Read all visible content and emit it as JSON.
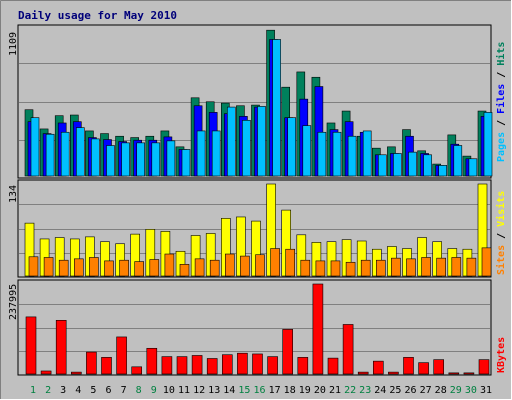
{
  "title": "Daily usage for May 2010",
  "colors": {
    "hits": "#00805c",
    "files": "#0000ff",
    "pages": "#00c0ff",
    "visits": "#ffff00",
    "sites": "#ff8000",
    "kbytes": "#ff0000",
    "weekday_label": "#008040",
    "panel_bg": "#c0c0c0",
    "grid": "#808080",
    "sep": "#ffffff"
  },
  "chart_data": [
    {
      "type": "bar",
      "panel": "hits-files-pages",
      "max_label": "1109",
      "ylim": [
        0,
        1109
      ],
      "legend": {
        "pages": "Pages",
        "files": "Files",
        "hits": "Hits",
        "sep1": " / ",
        "sep2": " / "
      },
      "categories": [
        "1",
        "2",
        "3",
        "4",
        "5",
        "6",
        "7",
        "8",
        "9",
        "10",
        "11",
        "12",
        "13",
        "14",
        "15",
        "16",
        "17",
        "18",
        "19",
        "20",
        "21",
        "22",
        "23",
        "24",
        "25",
        "26",
        "27",
        "28",
        "29",
        "30",
        "31"
      ],
      "series": [
        {
          "name": "Hits",
          "values": [
            500,
            355,
            455,
            460,
            340,
            320,
            300,
            290,
            300,
            340,
            220,
            590,
            560,
            550,
            530,
            535,
            1100,
            670,
            785,
            745,
            400,
            490,
            300,
            210,
            220,
            350,
            190,
            90,
            310,
            150,
            490
          ]
        },
        {
          "name": "Files",
          "values": [
            410,
            320,
            400,
            410,
            290,
            275,
            260,
            270,
            270,
            295,
            200,
            530,
            480,
            470,
            450,
            520,
            1030,
            440,
            580,
            675,
            350,
            410,
            330,
            160,
            170,
            300,
            170,
            80,
            240,
            130,
            450
          ]
        },
        {
          "name": "Pages",
          "values": [
            440,
            315,
            330,
            365,
            280,
            230,
            250,
            250,
            250,
            265,
            200,
            340,
            340,
            520,
            420,
            525,
            1030,
            440,
            380,
            330,
            330,
            300,
            340,
            160,
            170,
            180,
            160,
            80,
            230,
            130,
            480
          ]
        }
      ]
    },
    {
      "type": "bar",
      "panel": "visits-sites",
      "max_label": "134",
      "ylim": [
        0,
        134
      ],
      "legend": {
        "sites": "Sites",
        "visits": "Visits",
        "sep": " / "
      },
      "categories": [
        "1",
        "2",
        "3",
        "4",
        "5",
        "6",
        "7",
        "8",
        "9",
        "10",
        "11",
        "12",
        "13",
        "14",
        "15",
        "16",
        "17",
        "18",
        "19",
        "20",
        "21",
        "22",
        "23",
        "24",
        "25",
        "26",
        "27",
        "28",
        "29",
        "30",
        "31"
      ],
      "series": [
        {
          "name": "Visits",
          "values": [
            77,
            54,
            56,
            54,
            57,
            50,
            47,
            61,
            68,
            65,
            36,
            59,
            62,
            84,
            86,
            80,
            134,
            96,
            60,
            49,
            50,
            53,
            51,
            39,
            43,
            40,
            56,
            50,
            40,
            39,
            134
          ]
        },
        {
          "name": "Sites",
          "values": [
            28,
            27,
            23,
            25,
            27,
            22,
            23,
            21,
            24,
            32,
            17,
            25,
            23,
            32,
            29,
            31,
            40,
            39,
            23,
            22,
            22,
            20,
            23,
            23,
            26,
            25,
            27,
            26,
            27,
            26,
            41
          ]
        }
      ]
    },
    {
      "type": "bar",
      "panel": "kbytes",
      "max_label": "237995",
      "ylim": [
        0,
        237995
      ],
      "legend": {
        "kbytes": "KBytes"
      },
      "categories": [
        "1",
        "2",
        "3",
        "4",
        "5",
        "6",
        "7",
        "8",
        "9",
        "10",
        "11",
        "12",
        "13",
        "14",
        "15",
        "16",
        "17",
        "18",
        "19",
        "20",
        "21",
        "22",
        "23",
        "24",
        "25",
        "26",
        "27",
        "28",
        "29",
        "30",
        "31"
      ],
      "series": [
        {
          "name": "KBytes",
          "values": [
            151000,
            8000,
            142000,
            5000,
            58000,
            44000,
            98000,
            19000,
            68000,
            46000,
            46000,
            49000,
            41000,
            51000,
            55000,
            53000,
            46000,
            118000,
            44000,
            237995,
            42000,
            131000,
            5000,
            34000,
            5000,
            44000,
            30000,
            38000,
            3000,
            3000,
            38000
          ]
        }
      ]
    }
  ]
}
